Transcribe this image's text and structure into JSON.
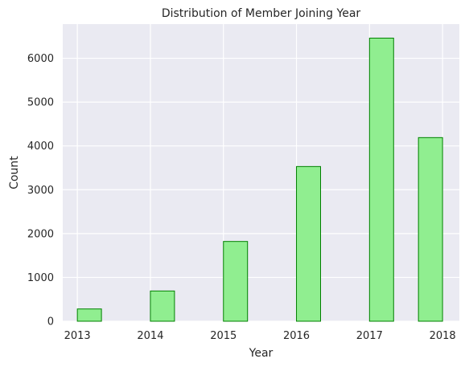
{
  "chart_data": {
    "type": "bar",
    "title": "Distribution of Member Joining Year",
    "xlabel": "Year",
    "ylabel": "Count",
    "x_ticks": [
      2013,
      2014,
      2015,
      2016,
      2017,
      2018
    ],
    "y_ticks": [
      0,
      1000,
      2000,
      3000,
      4000,
      5000,
      6000
    ],
    "xlim": [
      2012.8,
      2018.23
    ],
    "ylim": [
      0,
      6780
    ],
    "grid": true,
    "bars": [
      {
        "x_start": 2013.0,
        "x_end": 2013.33,
        "value": 280
      },
      {
        "x_start": 2014.0,
        "x_end": 2014.33,
        "value": 690
      },
      {
        "x_start": 2015.0,
        "x_end": 2015.33,
        "value": 1820
      },
      {
        "x_start": 2016.0,
        "x_end": 2016.33,
        "value": 3530
      },
      {
        "x_start": 2017.0,
        "x_end": 2017.33,
        "value": 6460
      },
      {
        "x_start": 2017.67,
        "x_end": 2018.0,
        "value": 4190
      }
    ],
    "colors": {
      "bar_fill": "#90ee90",
      "bar_edge": "#008000",
      "plot_background": "#eaeaf2",
      "grid": "#ffffff",
      "text": "#262626"
    }
  }
}
